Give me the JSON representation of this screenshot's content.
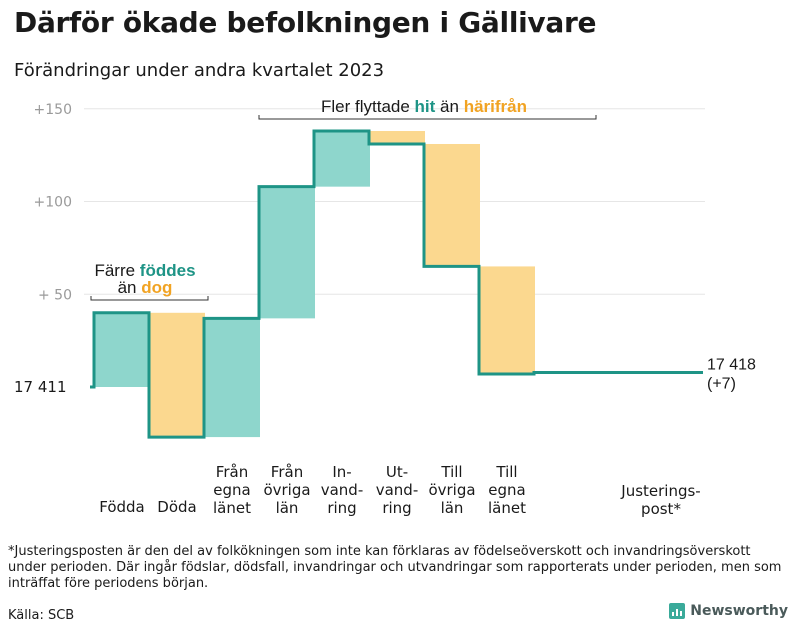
{
  "title": "Därför ökade befolkningen i Gällivare",
  "subtitle": "Förändringar under andra kvartalet 2023",
  "footnote": "*Justeringsposten är den del av folkökningen som inte kan förklaras av födelseöverskott och invandringsöverskott under perioden. Där ingår födslar, dödsfall, invandringar och utvandringar som rapporterats under perioden, men som inträffat före periodens början.",
  "source": "Källa: SCB",
  "brand": "Newsworthy",
  "colors": {
    "increase": "#8ed6cc",
    "decrease": "#fbd88f",
    "line": "#1e9486",
    "hit": "#1e9486",
    "harifran": "#f1a323",
    "grid": "#e6e6e6",
    "tick": "#9a9a9a"
  },
  "annotations": {
    "births_deaths": {
      "line1": "Färre ",
      "line1_highlight": "föddes",
      "line2": "än ",
      "line2_highlight": "dog"
    },
    "migration": {
      "prefix": "Fler flyttade ",
      "hit": "hit",
      "middle": " än ",
      "harifran": "härifrån"
    }
  },
  "chart_data": {
    "type": "waterfall",
    "title": "Därför ökade befolkningen i Gällivare",
    "subtitle": "Förändringar under andra kvartalet 2023",
    "base_value": 17411,
    "base_label": "17  411",
    "y_ticks": [
      {
        "value": 50,
        "label": "+  50"
      },
      {
        "value": 100,
        "label": "+100"
      },
      {
        "value": 150,
        "label": "+150"
      }
    ],
    "ylim": [
      -29,
      158
    ],
    "grid": true,
    "steps": [
      {
        "label": [
          "Födda"
        ],
        "change": 40
      },
      {
        "label": [
          "Döda"
        ],
        "change": -67
      },
      {
        "label": [
          "Från",
          "egna",
          "länet"
        ],
        "change": 64
      },
      {
        "label": [
          "Från",
          "övriga",
          "län"
        ],
        "change": 71
      },
      {
        "label": [
          "In-",
          "vand-",
          "ring"
        ],
        "change": 30
      },
      {
        "label": [
          "Ut-",
          "vand-",
          "ring"
        ],
        "change": -7
      },
      {
        "label": [
          "Till",
          "övriga",
          "län"
        ],
        "change": -66
      },
      {
        "label": [
          "Till",
          "egna",
          "länet"
        ],
        "change": -58
      },
      {
        "label": [
          "Justerings-",
          "post*"
        ],
        "change": 0.8
      }
    ],
    "end_label": [
      "17 418",
      "(+7)"
    ],
    "end_value": 17418,
    "net_change": 7
  }
}
